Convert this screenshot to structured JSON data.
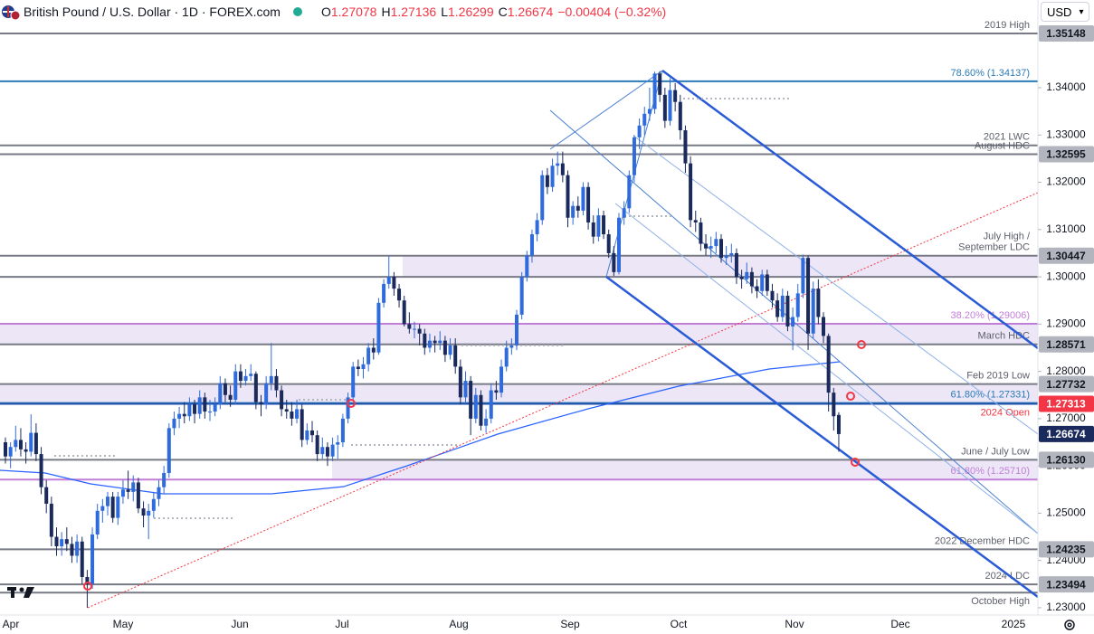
{
  "header": {
    "title": "British Pound / U.S. Dollar · 1D · FOREX.com",
    "ohlc": [
      {
        "k": "O",
        "v": "1.27078"
      },
      {
        "k": "H",
        "v": "1.27136"
      },
      {
        "k": "L",
        "v": "1.26299"
      },
      {
        "k": "C",
        "v": "1.26674"
      }
    ],
    "change": "−0.00404 (−0.32%)",
    "currency": "USD"
  },
  "chart_data": {
    "type": "candlestick",
    "up_color": "#2f6bdc",
    "down_color": "#1b2a5c",
    "grid": false,
    "ylim": [
      1.22846,
      1.35856
    ],
    "yticks": [
      {
        "value": 1.23,
        "label": "1.23000"
      },
      {
        "value": 1.24,
        "label": "1.24000"
      },
      {
        "value": 1.25,
        "label": "1.25000"
      },
      {
        "value": 1.26,
        "label": "1.26000"
      },
      {
        "value": 1.27,
        "label": "1.27000"
      },
      {
        "value": 1.28,
        "label": "1.28000"
      },
      {
        "value": 1.29,
        "label": "1.29000"
      },
      {
        "value": 1.3,
        "label": "1.30000"
      },
      {
        "value": 1.31,
        "label": "1.31000"
      },
      {
        "value": 1.32,
        "label": "1.32000"
      },
      {
        "value": 1.33,
        "label": "1.33000"
      },
      {
        "value": 1.34,
        "label": "1.34000"
      }
    ],
    "x_labels": [
      "Apr",
      "May",
      "Jun",
      "Jul",
      "Aug",
      "Sep",
      "Oct",
      "Nov",
      "Dec",
      "2025"
    ],
    "zones": [
      {
        "from": 1.3,
        "to": 1.30447,
        "color": "rgba(149,117,205,0.18)"
      },
      {
        "from": 1.28571,
        "to": 1.29006,
        "color": "rgba(149,117,205,0.18)"
      },
      {
        "from": 1.27313,
        "to": 1.27732,
        "color": "rgba(149,117,205,0.18)"
      },
      {
        "from": 1.2571,
        "to": 1.2613,
        "color": "rgba(149,117,205,0.18)"
      }
    ],
    "levels": [
      {
        "value": 1.35148,
        "color": "#787b86",
        "label": "2019 High",
        "label_color": "#5d606b"
      },
      {
        "value": 1.34137,
        "color": "#2a7cb6",
        "label": "78.60% (1.34137)",
        "label_color": "#2a7cb6"
      },
      {
        "value": 1.3278,
        "color": "#787b86",
        "label": "2021 LWC",
        "label_color": "#5d606b"
      },
      {
        "value": 1.32595,
        "color": "#787b86",
        "label": "August HDC",
        "label_color": "#5d606b"
      },
      {
        "value": 1.30447,
        "color": "#787b86",
        "label": [
          "July High /",
          "September LDC"
        ],
        "label_color": "#5d606b"
      },
      {
        "value": 1.3,
        "color": "#787b86"
      },
      {
        "value": 1.29006,
        "color": "#c27fd8",
        "label": "38.20% (1.29006)",
        "label_color": "#c27fd8"
      },
      {
        "value": 1.28571,
        "color": "#787b86",
        "label": "March HDC",
        "label_color": "#5d606b"
      },
      {
        "value": 1.27732,
        "color": "#787b86",
        "label": "Feb 2019 Low",
        "label_color": "#5d606b"
      },
      {
        "value": 1.27331,
        "color": "#2a7cb6",
        "label": "61.80% (1.27331)",
        "label_color": "#2a7cb6"
      },
      {
        "value": 1.27313,
        "color": "#1f4fa8",
        "label": "2024 Open",
        "label_color": "#f23645",
        "label_pos": "below"
      },
      {
        "value": 1.2613,
        "color": "#787b86",
        "label": "June / July Low",
        "label_color": "#5d606b"
      },
      {
        "value": 1.2571,
        "color": "#c27fd8",
        "label": "61.80% (1.25710)",
        "label_color": "#c27fd8"
      },
      {
        "value": 1.24235,
        "color": "#787b86",
        "label": "2022 December HDC",
        "label_color": "#5d606b"
      },
      {
        "value": 1.23494,
        "color": "#787b86",
        "label": "2024 LDC",
        "label_color": "#5d606b"
      },
      {
        "value": 1.2332,
        "color": "#787b86",
        "label": "October High",
        "label_color": "#5d606b",
        "label_pos": "below"
      }
    ],
    "price_badges": [
      {
        "value": 1.35148,
        "color": "#b2b5be",
        "text_color": "#131722"
      },
      {
        "value": 1.32595,
        "color": "#b2b5be",
        "text_color": "#131722"
      },
      {
        "value": 1.30447,
        "color": "#b2b5be",
        "text_color": "#131722"
      },
      {
        "value": 1.28571,
        "color": "#b2b5be",
        "text_color": "#131722"
      },
      {
        "value": 1.27732,
        "color": "#b2b5be",
        "text_color": "#131722"
      },
      {
        "value": 1.27313,
        "color": "#f23645",
        "text_color": "#ffffff"
      },
      {
        "value": 1.26674,
        "color": "#1b2a5c",
        "text_color": "#ffffff"
      },
      {
        "value": 1.2613,
        "label": "1.26130",
        "color": "#b2b5be",
        "text_color": "#131722"
      },
      {
        "value": 1.24235,
        "color": "#b2b5be",
        "text_color": "#131722"
      },
      {
        "value": 1.23494,
        "color": "#b2b5be",
        "text_color": "#131722"
      }
    ],
    "candles": [
      [
        1.265,
        1.266,
        1.2605,
        1.262
      ],
      [
        1.262,
        1.265,
        1.2595,
        1.264
      ],
      [
        1.264,
        1.2685,
        1.263,
        1.2655
      ],
      [
        1.2655,
        1.268,
        1.262,
        1.2635
      ],
      [
        1.2635,
        1.265,
        1.2605,
        1.263
      ],
      [
        1.263,
        1.2709,
        1.262,
        1.267
      ],
      [
        1.267,
        1.269,
        1.261,
        1.2625
      ],
      [
        1.2625,
        1.264,
        1.254,
        1.2555
      ],
      [
        1.2555,
        1.257,
        1.25,
        1.252
      ],
      [
        1.252,
        1.2535,
        1.243,
        1.245
      ],
      [
        1.245,
        1.247,
        1.241,
        1.243
      ],
      [
        1.243,
        1.246,
        1.241,
        1.2445
      ],
      [
        1.2445,
        1.247,
        1.242,
        1.2435
      ],
      [
        1.2435,
        1.245,
        1.2395,
        1.241
      ],
      [
        1.241,
        1.2455,
        1.2395,
        1.244
      ],
      [
        1.244,
        1.245,
        1.235,
        1.2365
      ],
      [
        1.2365,
        1.238,
        1.23,
        1.235
      ],
      [
        1.235,
        1.247,
        1.234,
        1.2455
      ],
      [
        1.2455,
        1.252,
        1.2445,
        1.2505
      ],
      [
        1.2505,
        1.253,
        1.248,
        1.2515
      ],
      [
        1.2515,
        1.2545,
        1.2495,
        1.2535
      ],
      [
        1.2535,
        1.2545,
        1.248,
        1.249
      ],
      [
        1.249,
        1.2545,
        1.2475,
        1.2535
      ],
      [
        1.2535,
        1.257,
        1.252,
        1.255
      ],
      [
        1.255,
        1.259,
        1.253,
        1.2545
      ],
      [
        1.2545,
        1.258,
        1.2525,
        1.2565
      ],
      [
        1.2565,
        1.2575,
        1.25,
        1.251
      ],
      [
        1.251,
        1.2525,
        1.247,
        1.2495
      ],
      [
        1.2495,
        1.252,
        1.2445,
        1.2505
      ],
      [
        1.2505,
        1.2545,
        1.249,
        1.253
      ],
      [
        1.253,
        1.257,
        1.2515,
        1.2555
      ],
      [
        1.2555,
        1.26,
        1.254,
        1.2585
      ],
      [
        1.2585,
        1.269,
        1.2575,
        1.268
      ],
      [
        1.268,
        1.2715,
        1.2665,
        1.27
      ],
      [
        1.27,
        1.2725,
        1.268,
        1.271
      ],
      [
        1.271,
        1.2735,
        1.269,
        1.2705
      ],
      [
        1.2705,
        1.2745,
        1.2695,
        1.273
      ],
      [
        1.273,
        1.274,
        1.269,
        1.271
      ],
      [
        1.271,
        1.276,
        1.27,
        1.2745
      ],
      [
        1.2745,
        1.2755,
        1.27,
        1.2715
      ],
      [
        1.2715,
        1.274,
        1.2695,
        1.2715
      ],
      [
        1.2715,
        1.2745,
        1.2705,
        1.273
      ],
      [
        1.273,
        1.279,
        1.272,
        1.2775
      ],
      [
        1.2775,
        1.2785,
        1.2735,
        1.275
      ],
      [
        1.275,
        1.277,
        1.2725,
        1.274
      ],
      [
        1.274,
        1.2815,
        1.273,
        1.28
      ],
      [
        1.28,
        1.2815,
        1.2765,
        1.278
      ],
      [
        1.278,
        1.2805,
        1.277,
        1.279
      ],
      [
        1.279,
        1.2815,
        1.278,
        1.2795
      ],
      [
        1.2795,
        1.28,
        1.272,
        1.2735
      ],
      [
        1.2735,
        1.275,
        1.2705,
        1.273
      ],
      [
        1.273,
        1.279,
        1.272,
        1.2775
      ],
      [
        1.2775,
        1.286,
        1.276,
        1.279
      ],
      [
        1.279,
        1.2805,
        1.2745,
        1.276
      ],
      [
        1.276,
        1.277,
        1.2705,
        1.272
      ],
      [
        1.272,
        1.274,
        1.27,
        1.2715
      ],
      [
        1.2715,
        1.2735,
        1.2685,
        1.27
      ],
      [
        1.27,
        1.274,
        1.269,
        1.272
      ],
      [
        1.272,
        1.273,
        1.264,
        1.2655
      ],
      [
        1.2655,
        1.269,
        1.2645,
        1.2675
      ],
      [
        1.2675,
        1.2695,
        1.265,
        1.2665
      ],
      [
        1.2665,
        1.2675,
        1.261,
        1.2625
      ],
      [
        1.2625,
        1.266,
        1.2615,
        1.264
      ],
      [
        1.264,
        1.265,
        1.26,
        1.262
      ],
      [
        1.262,
        1.266,
        1.261,
        1.2645
      ],
      [
        1.2645,
        1.2665,
        1.2615,
        1.265
      ],
      [
        1.265,
        1.271,
        1.264,
        1.27
      ],
      [
        1.27,
        1.2755,
        1.269,
        1.2745
      ],
      [
        1.2745,
        1.282,
        1.274,
        1.281
      ],
      [
        1.281,
        1.2825,
        1.279,
        1.2805
      ],
      [
        1.2805,
        1.283,
        1.2785,
        1.2815
      ],
      [
        1.2815,
        1.286,
        1.28,
        1.285
      ],
      [
        1.285,
        1.287,
        1.2825,
        1.284
      ],
      [
        1.284,
        1.2955,
        1.2835,
        1.2945
      ],
      [
        1.2945,
        1.2995,
        1.2935,
        1.2985
      ],
      [
        1.2985,
        1.3044,
        1.2975,
        1.3
      ],
      [
        1.3,
        1.301,
        1.296,
        1.2975
      ],
      [
        1.2975,
        1.2985,
        1.2935,
        1.295
      ],
      [
        1.295,
        1.296,
        1.2895,
        1.29
      ],
      [
        1.29,
        1.2925,
        1.288,
        1.289
      ],
      [
        1.289,
        1.2905,
        1.287,
        1.289
      ],
      [
        1.289,
        1.29,
        1.2855,
        1.288
      ],
      [
        1.288,
        1.289,
        1.2835,
        1.285
      ],
      [
        1.285,
        1.288,
        1.284,
        1.2865
      ],
      [
        1.2865,
        1.2875,
        1.284,
        1.286
      ],
      [
        1.286,
        1.2885,
        1.2845,
        1.2865
      ],
      [
        1.2865,
        1.2875,
        1.282,
        1.2835
      ],
      [
        1.2835,
        1.287,
        1.2825,
        1.2855
      ],
      [
        1.2855,
        1.287,
        1.2795,
        1.281
      ],
      [
        1.281,
        1.2825,
        1.273,
        1.2745
      ],
      [
        1.2745,
        1.28,
        1.2735,
        1.278
      ],
      [
        1.278,
        1.279,
        1.2665,
        1.27
      ],
      [
        1.27,
        1.2765,
        1.269,
        1.275
      ],
      [
        1.275,
        1.276,
        1.2675,
        1.2685
      ],
      [
        1.2685,
        1.272,
        1.267,
        1.27
      ],
      [
        1.27,
        1.2775,
        1.269,
        1.276
      ],
      [
        1.276,
        1.278,
        1.274,
        1.2755
      ],
      [
        1.2755,
        1.2825,
        1.2745,
        1.281
      ],
      [
        1.281,
        1.2865,
        1.28,
        1.285
      ],
      [
        1.285,
        1.287,
        1.2835,
        1.2855
      ],
      [
        1.2855,
        1.293,
        1.2845,
        1.292
      ],
      [
        1.292,
        1.301,
        1.291,
        1.3
      ],
      [
        1.3,
        1.3055,
        1.299,
        1.3045
      ],
      [
        1.3045,
        1.31,
        1.303,
        1.309
      ],
      [
        1.309,
        1.3135,
        1.3075,
        1.312
      ],
      [
        1.312,
        1.3225,
        1.311,
        1.3215
      ],
      [
        1.3215,
        1.323,
        1.3175,
        1.319
      ],
      [
        1.319,
        1.325,
        1.318,
        1.3235
      ],
      [
        1.3235,
        1.3265,
        1.3215,
        1.324
      ],
      [
        1.324,
        1.3265,
        1.32,
        1.3215
      ],
      [
        1.3215,
        1.3225,
        1.3105,
        1.3125
      ],
      [
        1.3125,
        1.316,
        1.311,
        1.315
      ],
      [
        1.315,
        1.317,
        1.3125,
        1.314
      ],
      [
        1.314,
        1.32,
        1.313,
        1.319
      ],
      [
        1.319,
        1.32,
        1.31,
        1.3115
      ],
      [
        1.3115,
        1.313,
        1.307,
        1.3085
      ],
      [
        1.3085,
        1.3145,
        1.3075,
        1.313
      ],
      [
        1.313,
        1.314,
        1.308,
        1.309
      ],
      [
        1.309,
        1.31,
        1.304,
        1.305
      ],
      [
        1.305,
        1.3065,
        1.3002,
        1.301
      ],
      [
        1.301,
        1.3135,
        1.3005,
        1.3125
      ],
      [
        1.3125,
        1.316,
        1.311,
        1.3145
      ],
      [
        1.3145,
        1.3225,
        1.3135,
        1.3215
      ],
      [
        1.3215,
        1.33,
        1.32,
        1.3295
      ],
      [
        1.3295,
        1.3335,
        1.327,
        1.332
      ],
      [
        1.332,
        1.336,
        1.33,
        1.3345
      ],
      [
        1.3345,
        1.34,
        1.333,
        1.3355
      ],
      [
        1.3355,
        1.3434,
        1.3345,
        1.343
      ],
      [
        1.343,
        1.3435,
        1.337,
        1.3385
      ],
      [
        1.3385,
        1.34,
        1.3315,
        1.333
      ],
      [
        1.333,
        1.342,
        1.332,
        1.3395
      ],
      [
        1.3395,
        1.341,
        1.335,
        1.337
      ],
      [
        1.337,
        1.3385,
        1.329,
        1.331
      ],
      [
        1.331,
        1.332,
        1.322,
        1.324
      ],
      [
        1.324,
        1.3255,
        1.3105,
        1.312
      ],
      [
        1.312,
        1.314,
        1.3095,
        1.3115
      ],
      [
        1.3115,
        1.3125,
        1.3055,
        1.307
      ],
      [
        1.307,
        1.309,
        1.3045,
        1.306
      ],
      [
        1.306,
        1.3085,
        1.304,
        1.3065
      ],
      [
        1.3065,
        1.3095,
        1.305,
        1.308
      ],
      [
        1.308,
        1.309,
        1.303,
        1.304
      ],
      [
        1.304,
        1.3065,
        1.3025,
        1.3045
      ],
      [
        1.3045,
        1.307,
        1.303,
        1.305
      ],
      [
        1.305,
        1.306,
        1.2985,
        1.3
      ],
      [
        1.3,
        1.3015,
        1.2975,
        1.2995
      ],
      [
        1.2995,
        1.303,
        1.2985,
        1.301
      ],
      [
        1.301,
        1.302,
        1.2965,
        1.298
      ],
      [
        1.298,
        1.2995,
        1.2955,
        1.297
      ],
      [
        1.297,
        1.3015,
        1.296,
        1.3005
      ],
      [
        1.3005,
        1.3015,
        1.296,
        1.297
      ],
      [
        1.297,
        1.2985,
        1.2935,
        1.295
      ],
      [
        1.295,
        1.2965,
        1.2905,
        1.2915
      ],
      [
        1.2915,
        1.2975,
        1.2905,
        1.296
      ],
      [
        1.296,
        1.297,
        1.2885,
        1.2895
      ],
      [
        1.2895,
        1.2935,
        1.2845,
        1.2915
      ],
      [
        1.2915,
        1.2985,
        1.2905,
        1.2965
      ],
      [
        1.2965,
        1.3047,
        1.2955,
        1.304
      ],
      [
        1.304,
        1.3045,
        1.2845,
        1.288
      ],
      [
        1.288,
        1.299,
        1.287,
        1.2975
      ],
      [
        1.2975,
        1.2995,
        1.29,
        1.2915
      ],
      [
        1.2915,
        1.2925,
        1.286,
        1.2875
      ],
      [
        1.2875,
        1.288,
        1.2715,
        1.2755
      ],
      [
        1.2755,
        1.2765,
        1.2675,
        1.2705
      ],
      [
        1.27078,
        1.27136,
        1.26299,
        1.26674
      ]
    ]
  }
}
